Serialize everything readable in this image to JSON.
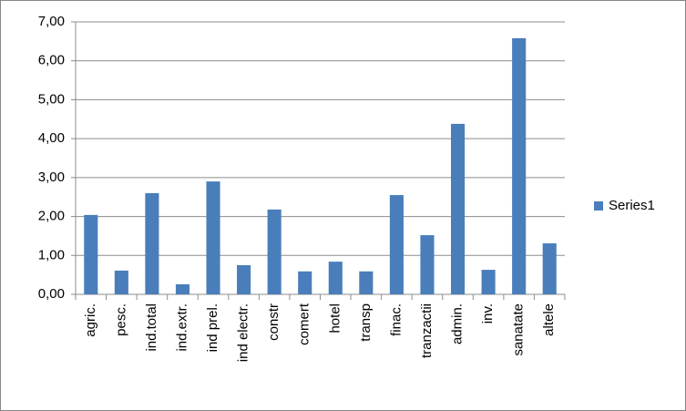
{
  "chart_data": {
    "type": "bar",
    "categories": [
      "agric.",
      "pesc.",
      "ind.total",
      "ind.extr.",
      "ind prel.",
      "ind electr.",
      "constr",
      "comert",
      "hotel",
      "transp",
      "finac.",
      "tranzactii",
      "admin.",
      "inv.",
      "sanatate",
      "altele"
    ],
    "series": [
      {
        "name": "Series1",
        "color": "#4a7ebb",
        "values": [
          2.04,
          0.61,
          2.6,
          0.26,
          2.9,
          0.75,
          2.18,
          0.59,
          0.84,
          0.59,
          2.55,
          1.52,
          4.38,
          0.63,
          6.58,
          1.31
        ]
      }
    ],
    "ylim": [
      0,
      7
    ],
    "yticks": [
      {
        "value": 0,
        "label": "0,00"
      },
      {
        "value": 1,
        "label": "1,00"
      },
      {
        "value": 2,
        "label": "2,00"
      },
      {
        "value": 3,
        "label": "3,00"
      },
      {
        "value": 4,
        "label": "4,00"
      },
      {
        "value": 5,
        "label": "5,00"
      },
      {
        "value": 6,
        "label": "6,00"
      },
      {
        "value": 7,
        "label": "7,00"
      }
    ],
    "grid": true,
    "legend": "right"
  }
}
